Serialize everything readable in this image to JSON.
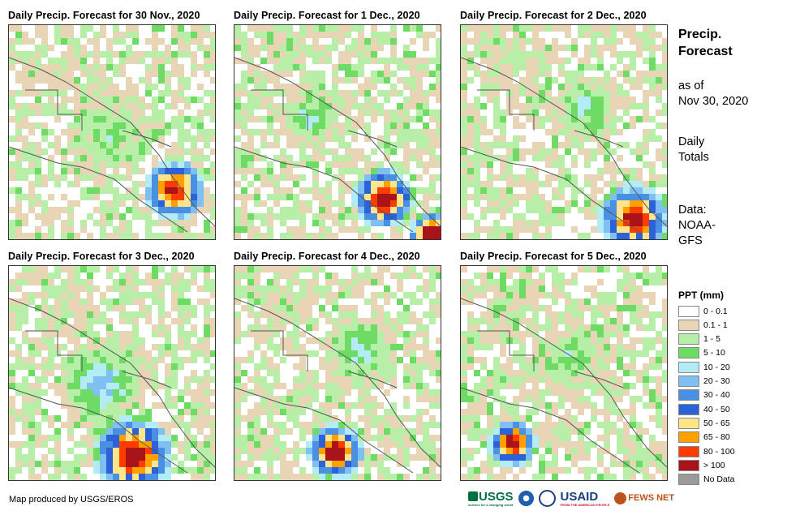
{
  "panels": [
    {
      "title": "Daily Precip. Forecast for 30 Nov., 2020"
    },
    {
      "title": "Daily Precip. Forecast for 1 Dec., 2020"
    },
    {
      "title": "Daily Precip. Forecast for 2 Dec., 2020"
    },
    {
      "title": "Daily Precip. Forecast for 3 Dec., 2020"
    },
    {
      "title": "Daily Precip. Forecast for 4 Dec., 2020"
    },
    {
      "title": "Daily Precip. Forecast for 5 Dec., 2020"
    }
  ],
  "sidebar": {
    "title_line1": "Precip.",
    "title_line2": "Forecast",
    "asof_line1": "as of",
    "asof_line2": "Nov 30, 2020",
    "totals_line1": "Daily",
    "totals_line2": "Totals",
    "data_line1": "Data:",
    "data_line2": "NOAA-",
    "data_line3": "GFS"
  },
  "legend": {
    "title": "PPT (mm)",
    "items": [
      {
        "label": "0 - 0.1",
        "color": "#ffffff"
      },
      {
        "label": "0.1 - 1",
        "color": "#e8d5b5"
      },
      {
        "label": "1 - 5",
        "color": "#b7efa8"
      },
      {
        "label": "5 - 10",
        "color": "#6edc64"
      },
      {
        "label": "10 - 20",
        "color": "#b3ecf5"
      },
      {
        "label": "20 - 30",
        "color": "#7fbff2"
      },
      {
        "label": "30 - 40",
        "color": "#4a90e2"
      },
      {
        "label": "40 - 50",
        "color": "#2b62d9"
      },
      {
        "label": "50 - 65",
        "color": "#ffe58a"
      },
      {
        "label": "65 - 80",
        "color": "#ffa000"
      },
      {
        "label": "80 - 100",
        "color": "#ff3c00"
      },
      {
        "label": "> 100",
        "color": "#a8141a"
      },
      {
        "label": "No Data",
        "color": "#9a9a9a"
      }
    ]
  },
  "footer": {
    "credit": "Map produced by USGS/EROS",
    "logo_usgs": "USGS",
    "logo_usgs_tagline": "science for a changing world",
    "logo_usaid": "USAID",
    "logo_usaid_tagline": "FROM THE AMERICAN PEOPLE",
    "logo_fewsnet": "FEWS NET"
  }
}
